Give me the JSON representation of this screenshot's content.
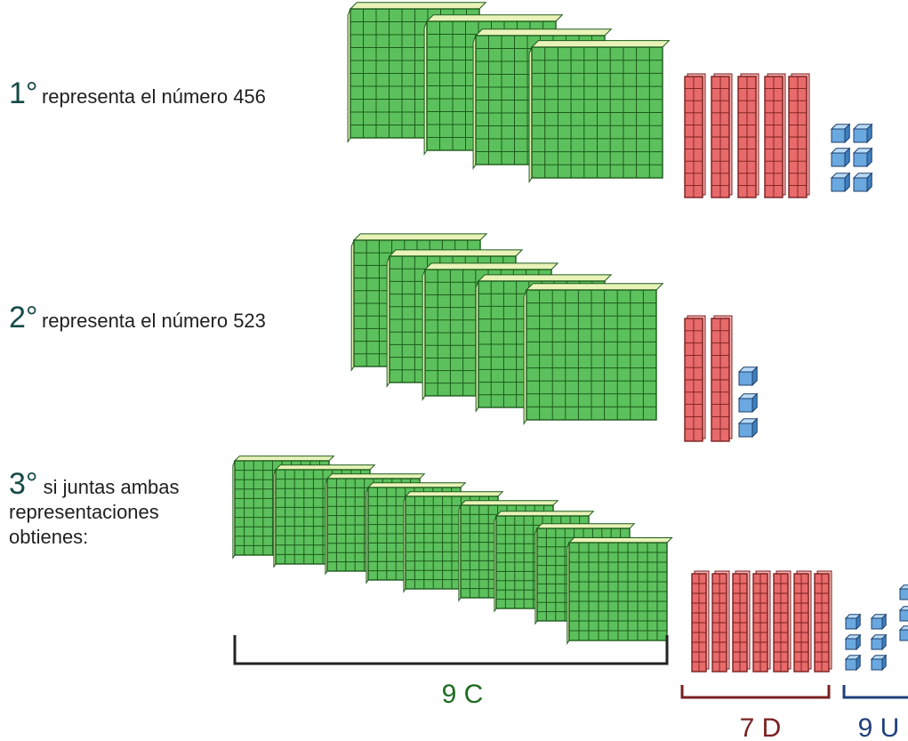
{
  "steps": [
    {
      "number": "1°",
      "text": "representa el número 456"
    },
    {
      "number": "2°",
      "text": "representa el número 523"
    },
    {
      "number": "3°",
      "lines": [
        "si juntas ambas",
        "representaciones",
        "obtienes:"
      ]
    }
  ],
  "groups": [
    {
      "label": "9 C",
      "count": 9,
      "color": "#1c6b1f"
    },
    {
      "label": "7 D",
      "count": 7,
      "color": "#7a2020"
    },
    {
      "label": "9 U",
      "count": 9,
      "color": "#1f3f7a"
    }
  ],
  "colors": {
    "flat_fill": "#5cc15c",
    "flat_line": "#1d5a1d",
    "flat_edge": "#e9f3b8",
    "rod_fill": "#e86a6a",
    "rod_line": "#7a1f1f",
    "unit_fill": "#6aa8e0",
    "unit_line": "#1d3f6a"
  }
}
